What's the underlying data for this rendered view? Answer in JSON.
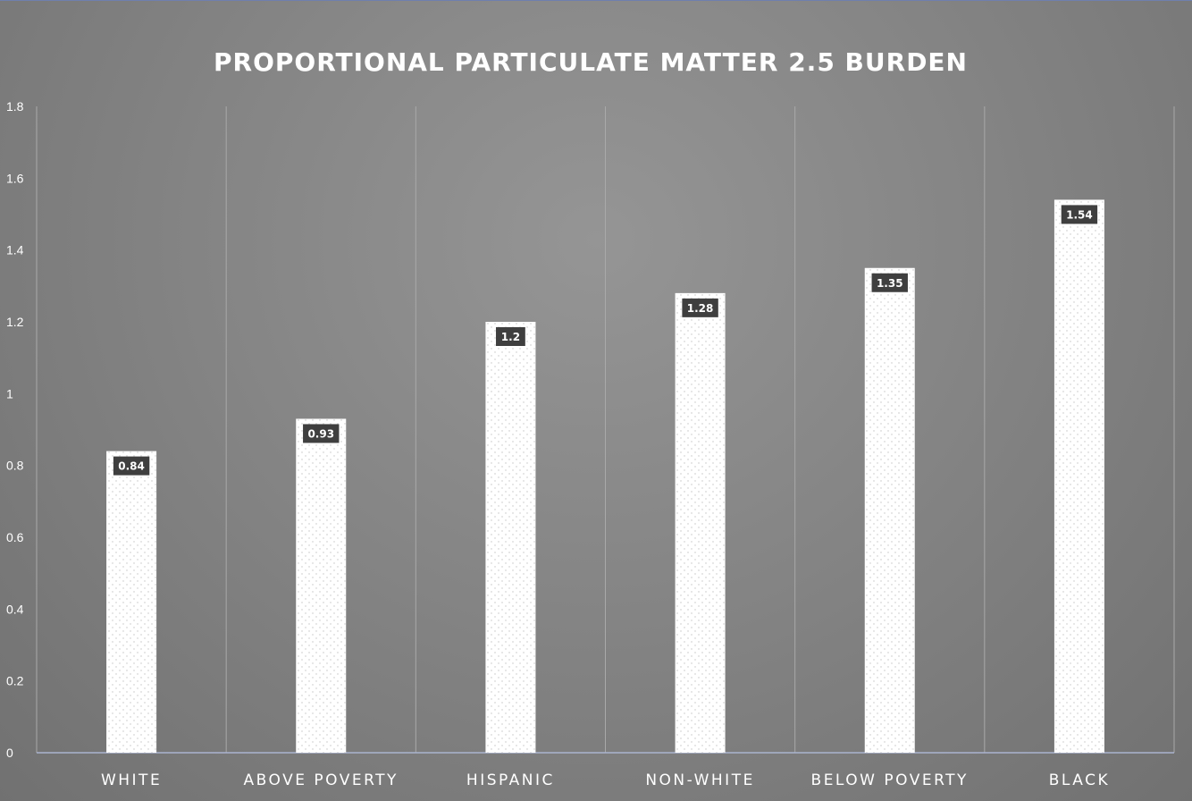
{
  "chart_data": {
    "type": "bar",
    "title": "PROPORTIONAL PARTICULATE MATTER 2.5 BURDEN",
    "categories": [
      "WHITE",
      "ABOVE POVERTY",
      "HISPANIC",
      "NON-WHITE",
      "BELOW POVERTY",
      "BLACK"
    ],
    "values": [
      0.84,
      0.93,
      1.2,
      1.28,
      1.35,
      1.54
    ],
    "data_labels": [
      "0.84",
      "0.93",
      "1.2",
      "1.28",
      "1.35",
      "1.54"
    ],
    "ylim": [
      0,
      1.8
    ],
    "yticks": [
      0,
      0.2,
      0.4,
      0.6,
      0.8,
      1,
      1.2,
      1.4,
      1.6,
      1.8
    ],
    "ytick_labels": [
      "0",
      "0.2",
      "0.4",
      "0.6",
      "0.8",
      "1",
      "1.2",
      "1.4",
      "1.6",
      "1.8"
    ],
    "xlabel": "",
    "ylabel": "",
    "grid": "vertical category separators",
    "legend": "none",
    "colors": {
      "bar_fill": "#ffffff",
      "bar_dots": "#c4c4c4",
      "label_bg": "#3f3f3f",
      "text": "#ffffff",
      "gridline": "#a9a9a9",
      "axis": "#aab3cf"
    }
  }
}
